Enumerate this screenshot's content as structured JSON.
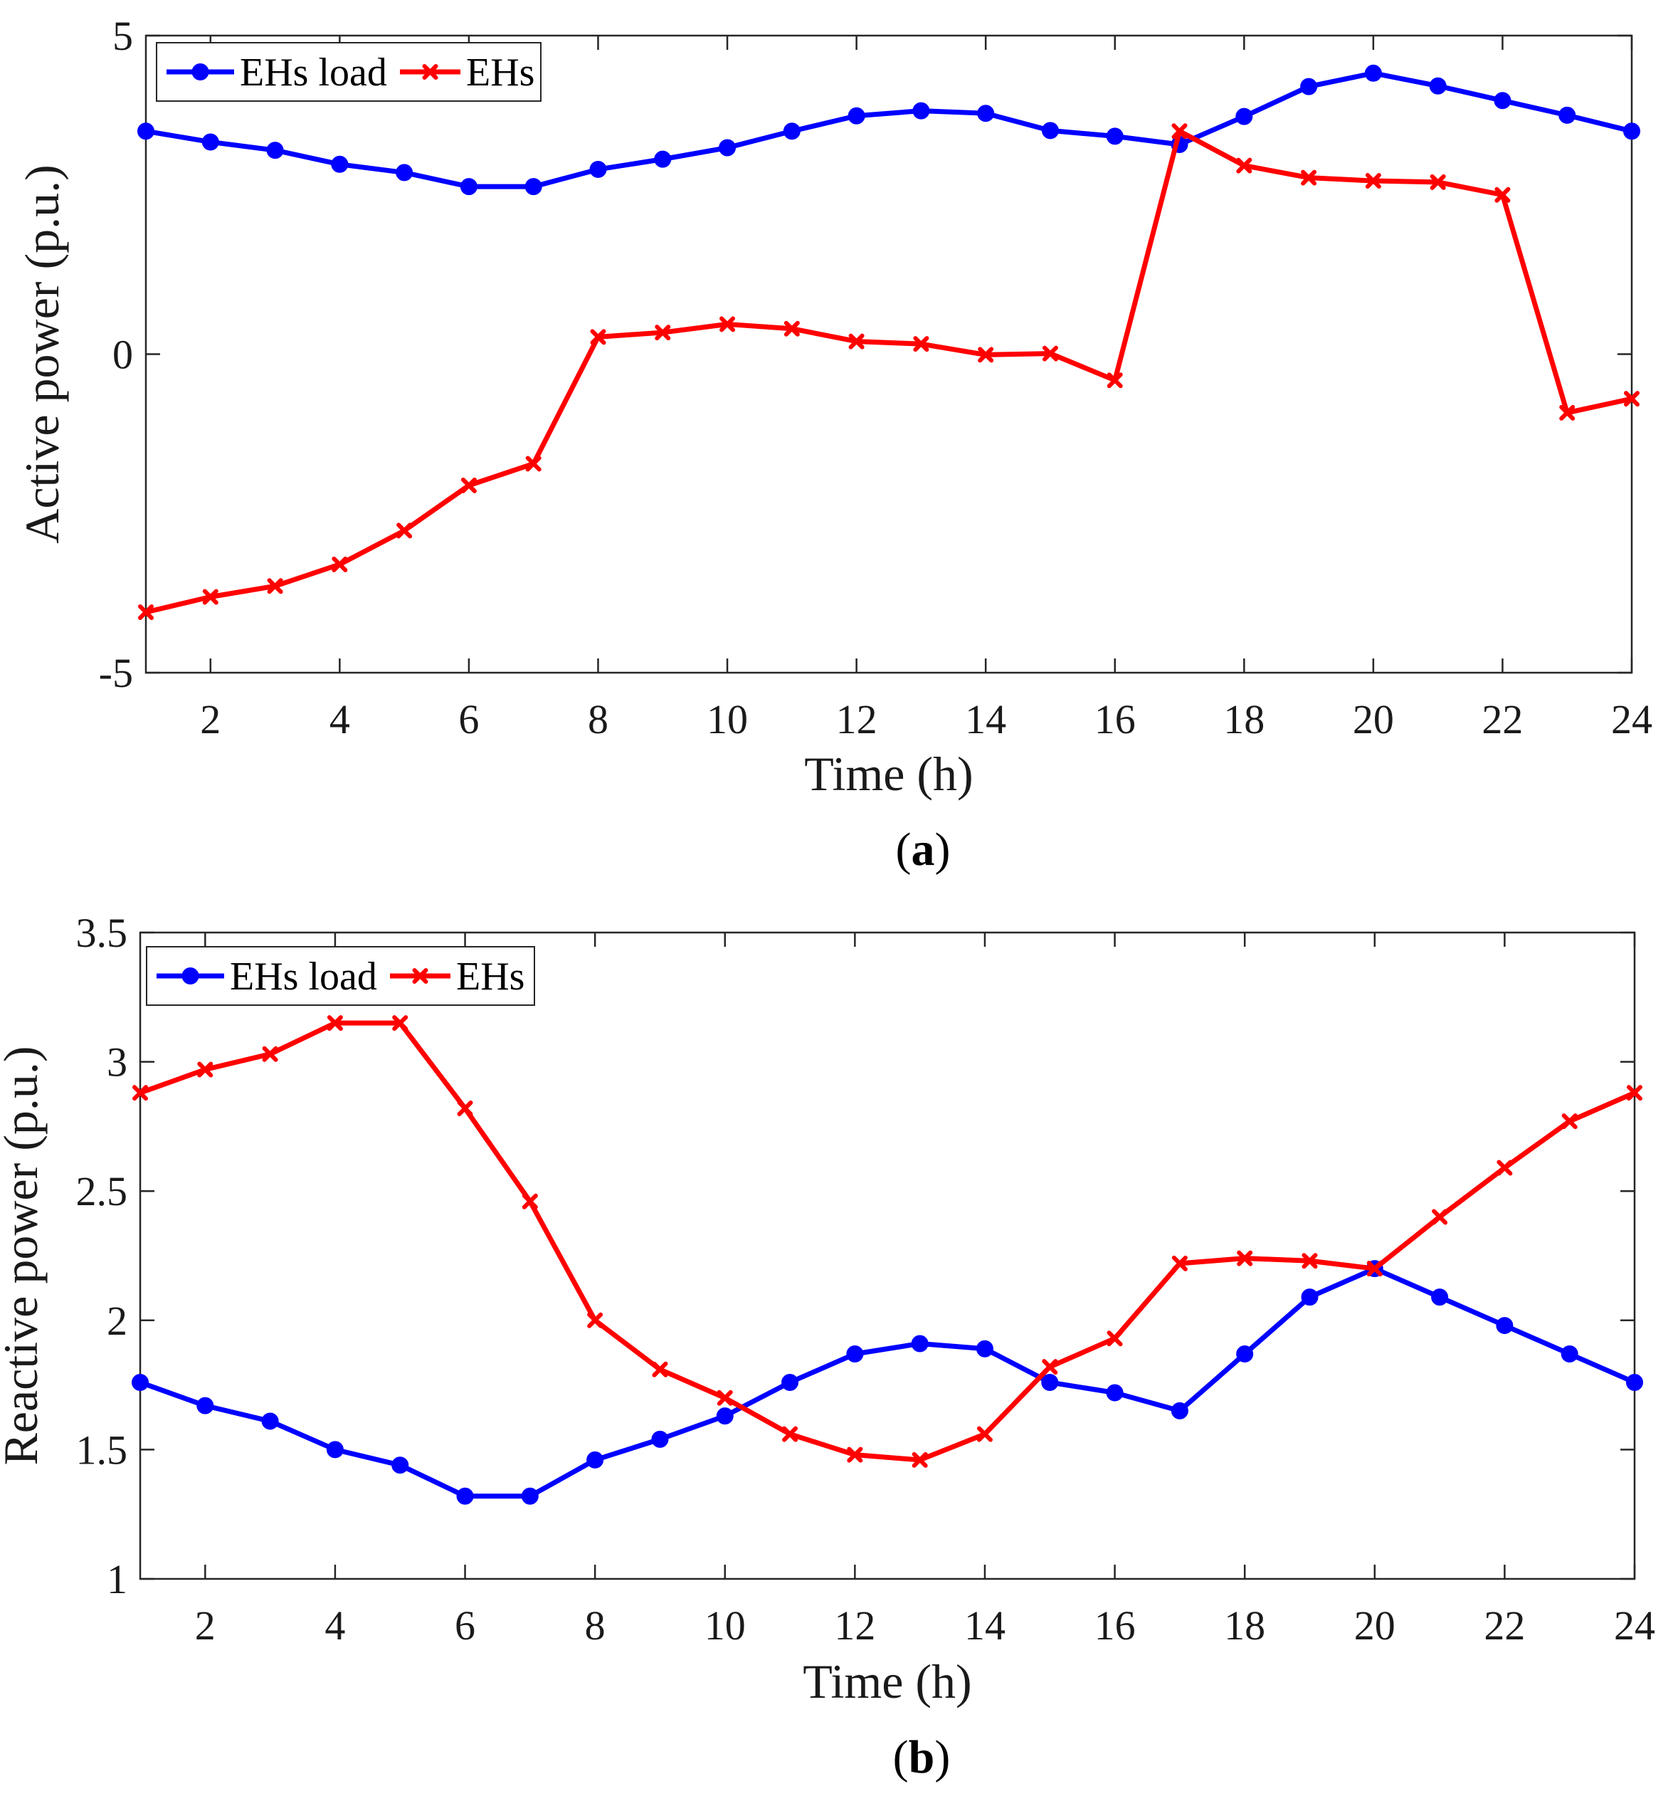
{
  "chart_data": [
    {
      "type": "line",
      "caption_letter": "a",
      "xlabel": "Time (h)",
      "ylabel": "Active power (p.u.)",
      "xlim": [
        1,
        24
      ],
      "ylim": [
        -5,
        5
      ],
      "xticks": [
        2,
        4,
        6,
        8,
        10,
        12,
        14,
        16,
        18,
        20,
        22,
        24
      ],
      "yticks": [
        -5,
        0,
        5
      ],
      "ytick_labels": [
        "-5",
        "0",
        "5"
      ],
      "grid": false,
      "legend_position": "top-left",
      "x": [
        1,
        2,
        3,
        4,
        5,
        6,
        7,
        8,
        9,
        10,
        11,
        12,
        13,
        14,
        15,
        16,
        17,
        18,
        19,
        20,
        21,
        22,
        23,
        24
      ],
      "series": [
        {
          "name": "EHs load",
          "color": "#0000ff",
          "marker": "circle",
          "values": [
            3.5,
            3.33,
            3.2,
            2.98,
            2.85,
            2.63,
            2.63,
            2.9,
            3.06,
            3.24,
            3.5,
            3.74,
            3.82,
            3.78,
            3.51,
            3.42,
            3.29,
            3.73,
            4.2,
            4.41,
            4.21,
            3.98,
            3.75,
            3.5
          ]
        },
        {
          "name": "EHs",
          "color": "#ff0000",
          "marker": "x",
          "values": [
            -4.05,
            -3.81,
            -3.64,
            -3.3,
            -2.77,
            -2.06,
            -1.72,
            0.27,
            0.34,
            0.47,
            0.4,
            0.2,
            0.16,
            -0.01,
            0.01,
            -0.41,
            3.5,
            2.96,
            2.77,
            2.72,
            2.7,
            2.5,
            -0.92,
            -0.7
          ]
        }
      ]
    },
    {
      "type": "line",
      "caption_letter": "b",
      "xlabel": "Time (h)",
      "ylabel": "Reactive power (p.u.)",
      "xlim": [
        1,
        24
      ],
      "ylim": [
        1,
        3.5
      ],
      "xticks": [
        2,
        4,
        6,
        8,
        10,
        12,
        14,
        16,
        18,
        20,
        22,
        24
      ],
      "yticks": [
        1,
        1.5,
        2,
        2.5,
        3,
        3.5
      ],
      "ytick_labels": [
        "1",
        "1.5",
        "2",
        "2.5",
        "3",
        "3.5"
      ],
      "grid": false,
      "legend_position": "top-left",
      "x": [
        1,
        2,
        3,
        4,
        5,
        6,
        7,
        8,
        9,
        10,
        11,
        12,
        13,
        14,
        15,
        16,
        17,
        18,
        19,
        20,
        21,
        22,
        23,
        24
      ],
      "series": [
        {
          "name": "EHs load",
          "color": "#0000ff",
          "marker": "circle",
          "values": [
            1.76,
            1.67,
            1.61,
            1.5,
            1.44,
            1.32,
            1.32,
            1.46,
            1.54,
            1.63,
            1.76,
            1.87,
            1.91,
            1.89,
            1.76,
            1.72,
            1.65,
            1.87,
            2.09,
            2.2,
            2.09,
            1.98,
            1.87,
            1.76
          ]
        },
        {
          "name": "EHs",
          "color": "#ff0000",
          "marker": "x",
          "values": [
            2.88,
            2.97,
            3.03,
            3.15,
            3.15,
            2.82,
            2.46,
            2.0,
            1.81,
            1.7,
            1.56,
            1.48,
            1.46,
            1.56,
            1.82,
            1.93,
            2.22,
            2.24,
            2.23,
            2.2,
            2.4,
            2.59,
            2.77,
            2.88
          ]
        }
      ]
    }
  ]
}
